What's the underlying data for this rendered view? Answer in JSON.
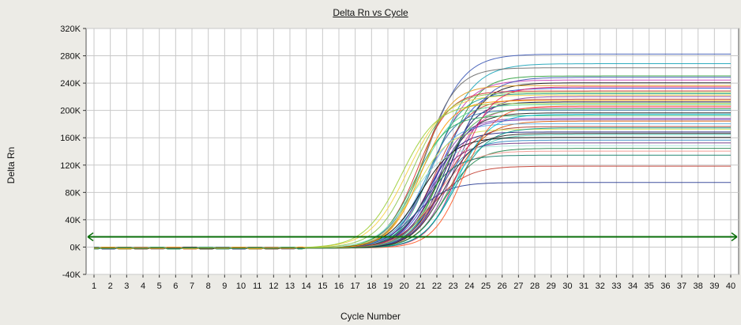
{
  "chart_data": {
    "type": "line",
    "title": "Delta Rn vs Cycle",
    "xlabel": "Cycle Number",
    "ylabel": "Delta Rn",
    "xlim": [
      1,
      40
    ],
    "ylim": [
      -40000,
      320000
    ],
    "x_ticks": [
      1,
      2,
      3,
      4,
      5,
      6,
      7,
      8,
      9,
      10,
      11,
      12,
      13,
      14,
      15,
      16,
      17,
      18,
      19,
      20,
      21,
      22,
      23,
      24,
      25,
      26,
      27,
      28,
      29,
      30,
      31,
      32,
      33,
      34,
      35,
      36,
      37,
      38,
      39,
      40
    ],
    "y_ticks": [
      {
        "value": -40000,
        "label": "-40K"
      },
      {
        "value": 0,
        "label": "0K"
      },
      {
        "value": 40000,
        "label": "40K"
      },
      {
        "value": 80000,
        "label": "80K"
      },
      {
        "value": 120000,
        "label": "120K"
      },
      {
        "value": 160000,
        "label": "160K"
      },
      {
        "value": 200000,
        "label": "200K"
      },
      {
        "value": 240000,
        "label": "240K"
      },
      {
        "value": 280000,
        "label": "280K"
      },
      {
        "value": 320000,
        "label": "320K"
      }
    ],
    "grid": true,
    "threshold": {
      "value": 15000,
      "color": "#0a6e0a"
    },
    "series_description_note": "",
    "series": [
      {
        "plateau": 284000,
        "midpoint": 21.4,
        "slope": 0.62,
        "color": "#3a57b5"
      },
      {
        "plateau": 270000,
        "midpoint": 22.0,
        "slope": 0.6,
        "color": "#1aa3b8"
      },
      {
        "plateau": 264000,
        "midpoint": 21.2,
        "slope": 0.7,
        "color": "#6a6a6a"
      },
      {
        "plateau": 252000,
        "midpoint": 22.5,
        "slope": 0.72,
        "color": "#2a9d3a"
      },
      {
        "plateau": 246000,
        "midpoint": 21.8,
        "slope": 0.65,
        "color": "#c63bb6"
      },
      {
        "plateau": 242000,
        "midpoint": 22.8,
        "slope": 0.68,
        "color": "#111111"
      },
      {
        "plateau": 238000,
        "midpoint": 21.0,
        "slope": 0.75,
        "color": "#e09a1c"
      },
      {
        "plateau": 234000,
        "midpoint": 22.2,
        "slope": 0.66,
        "color": "#2e4fd1"
      },
      {
        "plateau": 230000,
        "midpoint": 20.8,
        "slope": 0.7,
        "color": "#d4322a"
      },
      {
        "plateau": 226000,
        "midpoint": 21.6,
        "slope": 0.74,
        "color": "#16a085"
      },
      {
        "plateau": 222000,
        "midpoint": 23.0,
        "slope": 0.7,
        "color": "#7d3c98"
      },
      {
        "plateau": 218000,
        "midpoint": 21.9,
        "slope": 0.69,
        "color": "#c0392b"
      },
      {
        "plateau": 214000,
        "midpoint": 22.4,
        "slope": 0.73,
        "color": "#0b0b5e"
      },
      {
        "plateau": 210000,
        "midpoint": 20.9,
        "slope": 0.64,
        "color": "#58d68d"
      },
      {
        "plateau": 206000,
        "midpoint": 22.6,
        "slope": 0.71,
        "color": "#e74c9c"
      },
      {
        "plateau": 202000,
        "midpoint": 21.3,
        "slope": 0.76,
        "color": "#2874a6"
      },
      {
        "plateau": 198000,
        "midpoint": 22.1,
        "slope": 0.68,
        "color": "#1b1b1b"
      },
      {
        "plateau": 194000,
        "midpoint": 20.6,
        "slope": 0.7,
        "color": "#27ae60"
      },
      {
        "plateau": 190000,
        "midpoint": 21.7,
        "slope": 0.72,
        "color": "#8e44ad"
      },
      {
        "plateau": 186000,
        "midpoint": 22.9,
        "slope": 0.66,
        "color": "#d35400"
      },
      {
        "plateau": 182000,
        "midpoint": 21.1,
        "slope": 0.73,
        "color": "#5dade2"
      },
      {
        "plateau": 178000,
        "midpoint": 22.3,
        "slope": 0.69,
        "color": "#a93226"
      },
      {
        "plateau": 174000,
        "midpoint": 20.7,
        "slope": 0.68,
        "color": "#d4e157"
      },
      {
        "plateau": 170000,
        "midpoint": 21.5,
        "slope": 0.74,
        "color": "#1f1f7a"
      },
      {
        "plateau": 166000,
        "midpoint": 22.7,
        "slope": 0.7,
        "color": "#48c9b0"
      },
      {
        "plateau": 162000,
        "midpoint": 21.0,
        "slope": 0.66,
        "color": "#000000"
      },
      {
        "plateau": 158000,
        "midpoint": 22.0,
        "slope": 0.72,
        "color": "#2e86c1"
      },
      {
        "plateau": 154000,
        "midpoint": 21.4,
        "slope": 0.7,
        "color": "#6c3483"
      },
      {
        "plateau": 150000,
        "midpoint": 20.4,
        "slope": 0.65,
        "color": "#a3e4d7"
      },
      {
        "plateau": 146000,
        "midpoint": 22.5,
        "slope": 0.71,
        "color": "#1e8449"
      },
      {
        "plateau": 142000,
        "midpoint": 21.8,
        "slope": 0.67,
        "color": "#f1948a"
      },
      {
        "plateau": 136000,
        "midpoint": 21.2,
        "slope": 0.7,
        "color": "#117a65"
      },
      {
        "plateau": 120000,
        "midpoint": 21.6,
        "slope": 0.62,
        "color": "#c0392b"
      },
      {
        "plateau": 96000,
        "midpoint": 20.6,
        "slope": 0.68,
        "color": "#2c3e94"
      },
      {
        "plateau": 224000,
        "midpoint": 20.2,
        "slope": 0.6,
        "color": "#f4d03f"
      },
      {
        "plateau": 212000,
        "midpoint": 19.8,
        "slope": 0.62,
        "color": "#9acd32"
      },
      {
        "plateau": 236000,
        "midpoint": 23.4,
        "slope": 0.72,
        "color": "#e91e63"
      },
      {
        "plateau": 196000,
        "midpoint": 23.2,
        "slope": 0.7,
        "color": "#00bcd4"
      },
      {
        "plateau": 250000,
        "midpoint": 22.9,
        "slope": 0.66,
        "color": "#3f51b5"
      },
      {
        "plateau": 208000,
        "midpoint": 23.6,
        "slope": 0.74,
        "color": "#ff5722"
      },
      {
        "plateau": 228000,
        "midpoint": 20.5,
        "slope": 0.64,
        "color": "#8bc34a"
      },
      {
        "plateau": 188000,
        "midpoint": 21.9,
        "slope": 0.75,
        "color": "#673ab7"
      },
      {
        "plateau": 176000,
        "midpoint": 23.1,
        "slope": 0.69,
        "color": "#009688"
      },
      {
        "plateau": 168000,
        "midpoint": 22.4,
        "slope": 0.71,
        "color": "#212121"
      },
      {
        "plateau": 216000,
        "midpoint": 21.0,
        "slope": 0.73,
        "color": "#ff9800"
      },
      {
        "plateau": 204000,
        "midpoint": 22.2,
        "slope": 0.7,
        "color": "#4caf50"
      }
    ]
  }
}
